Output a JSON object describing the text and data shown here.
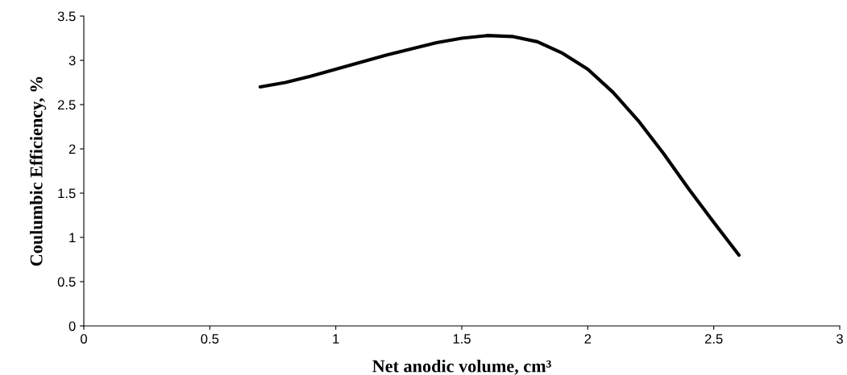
{
  "chart_data": {
    "type": "line",
    "xlabel": "Net anodic volume, cm³",
    "ylabel": "Coulumbic Efficiency, %",
    "x": [
      0.7,
      0.8,
      0.9,
      1.0,
      1.1,
      1.2,
      1.3,
      1.4,
      1.5,
      1.6,
      1.7,
      1.8,
      1.9,
      2.0,
      2.1,
      2.2,
      2.3,
      2.4,
      2.5,
      2.6
    ],
    "series": [
      {
        "color": "#000000",
        "values": [
          2.7,
          2.75,
          2.82,
          2.9,
          2.98,
          3.06,
          3.13,
          3.2,
          3.25,
          3.28,
          3.27,
          3.21,
          3.08,
          2.9,
          2.64,
          2.32,
          1.95,
          1.55,
          1.17,
          0.8
        ]
      }
    ],
    "xlim": [
      0,
      3
    ],
    "xticks": [
      0,
      0.5,
      1,
      1.5,
      2,
      2.5,
      3
    ],
    "ylim": [
      0,
      3.5
    ],
    "yticks": [
      0,
      0.5,
      1,
      1.5,
      2,
      2.5,
      3,
      3.5
    ],
    "grid": false,
    "legend": false,
    "marker": "none",
    "line_style": "solid"
  }
}
